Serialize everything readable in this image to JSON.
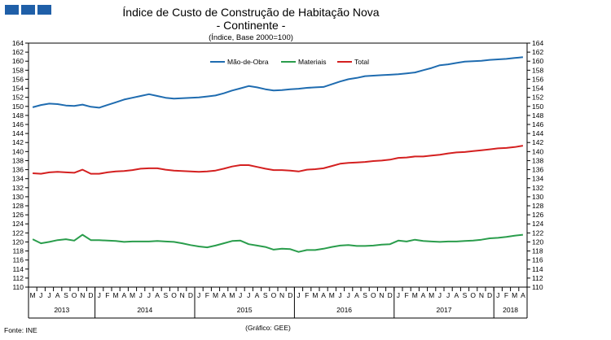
{
  "chart_data": {
    "type": "line",
    "title": "Índice de Custo de Construção de Habitação Nova",
    "title2": "- Continente -",
    "subtitle": "(Índice, Base 2000=100)",
    "source": "Fonte: INE",
    "credit": "(Gráfico: GEE)",
    "ylim": [
      110,
      164
    ],
    "ytick_step": 2,
    "grid": false,
    "legend_position": "top-center",
    "month_labels": [
      "M",
      "J",
      "J",
      "A",
      "S",
      "O",
      "N",
      "D",
      "J",
      "F",
      "M",
      "A",
      "M",
      "J",
      "J",
      "A",
      "S",
      "O",
      "N",
      "D",
      "J",
      "F",
      "M",
      "A",
      "M",
      "J",
      "J",
      "A",
      "S",
      "O",
      "N",
      "D",
      "J",
      "F",
      "M",
      "A",
      "M",
      "J",
      "J",
      "A",
      "S",
      "O",
      "N",
      "D",
      "J",
      "F",
      "M",
      "A",
      "M",
      "J",
      "J",
      "A",
      "S",
      "O",
      "N",
      "D",
      "J",
      "F",
      "M",
      "A"
    ],
    "years": [
      {
        "label": "2013",
        "start": 0,
        "count": 8
      },
      {
        "label": "2014",
        "start": 8,
        "count": 12
      },
      {
        "label": "2015",
        "start": 20,
        "count": 12
      },
      {
        "label": "2016",
        "start": 32,
        "count": 12
      },
      {
        "label": "2017",
        "start": 44,
        "count": 12
      },
      {
        "label": "2018",
        "start": 56,
        "count": 4
      }
    ],
    "series": [
      {
        "name": "Mão-de-Obra",
        "color": "#1f6cb0",
        "values": [
          149.8,
          150.3,
          150.6,
          150.5,
          150.2,
          150.1,
          150.4,
          149.9,
          149.7,
          150.3,
          150.9,
          151.5,
          151.9,
          152.3,
          152.7,
          152.3,
          151.9,
          151.7,
          151.8,
          151.9,
          152.0,
          152.2,
          152.4,
          152.9,
          153.5,
          154.0,
          154.5,
          154.2,
          153.8,
          153.5,
          153.6,
          153.8,
          153.9,
          154.1,
          154.2,
          154.3,
          154.9,
          155.5,
          156.0,
          156.3,
          156.7,
          156.8,
          156.9,
          157.0,
          157.1,
          157.3,
          157.5,
          158.0,
          158.5,
          159.1,
          159.3,
          159.6,
          159.9,
          160.0,
          160.1,
          160.3,
          160.4,
          160.5,
          160.7,
          160.9
        ]
      },
      {
        "name": "Materiais",
        "color": "#2a9d4c",
        "values": [
          120.6,
          119.7,
          120.0,
          120.4,
          120.6,
          120.3,
          121.6,
          120.4,
          120.4,
          120.3,
          120.2,
          120.0,
          120.1,
          120.1,
          120.1,
          120.2,
          120.1,
          120.0,
          119.7,
          119.3,
          119.0,
          118.8,
          119.2,
          119.7,
          120.2,
          120.3,
          119.5,
          119.2,
          118.9,
          118.3,
          118.5,
          118.4,
          117.8,
          118.2,
          118.2,
          118.5,
          118.9,
          119.2,
          119.3,
          119.1,
          119.1,
          119.2,
          119.4,
          119.5,
          120.3,
          120.1,
          120.5,
          120.2,
          120.1,
          120.0,
          120.1,
          120.1,
          120.2,
          120.3,
          120.5,
          120.8,
          120.9,
          121.1,
          121.4,
          121.6
        ]
      },
      {
        "name": "Total",
        "color": "#d42020",
        "values": [
          135.2,
          135.1,
          135.4,
          135.5,
          135.4,
          135.3,
          136.0,
          135.1,
          135.1,
          135.4,
          135.6,
          135.7,
          135.9,
          136.2,
          136.3,
          136.3,
          136.0,
          135.8,
          135.7,
          135.6,
          135.5,
          135.6,
          135.8,
          136.2,
          136.7,
          137.0,
          137.0,
          136.6,
          136.2,
          135.9,
          135.9,
          135.8,
          135.6,
          136.0,
          136.1,
          136.3,
          136.8,
          137.3,
          137.5,
          137.6,
          137.7,
          137.9,
          138.0,
          138.2,
          138.6,
          138.7,
          138.9,
          138.9,
          139.1,
          139.3,
          139.6,
          139.8,
          139.9,
          140.1,
          140.3,
          140.5,
          140.7,
          140.8,
          141.0,
          141.3
        ]
      }
    ]
  },
  "header": {
    "badge_color": "#1f5fa8"
  }
}
